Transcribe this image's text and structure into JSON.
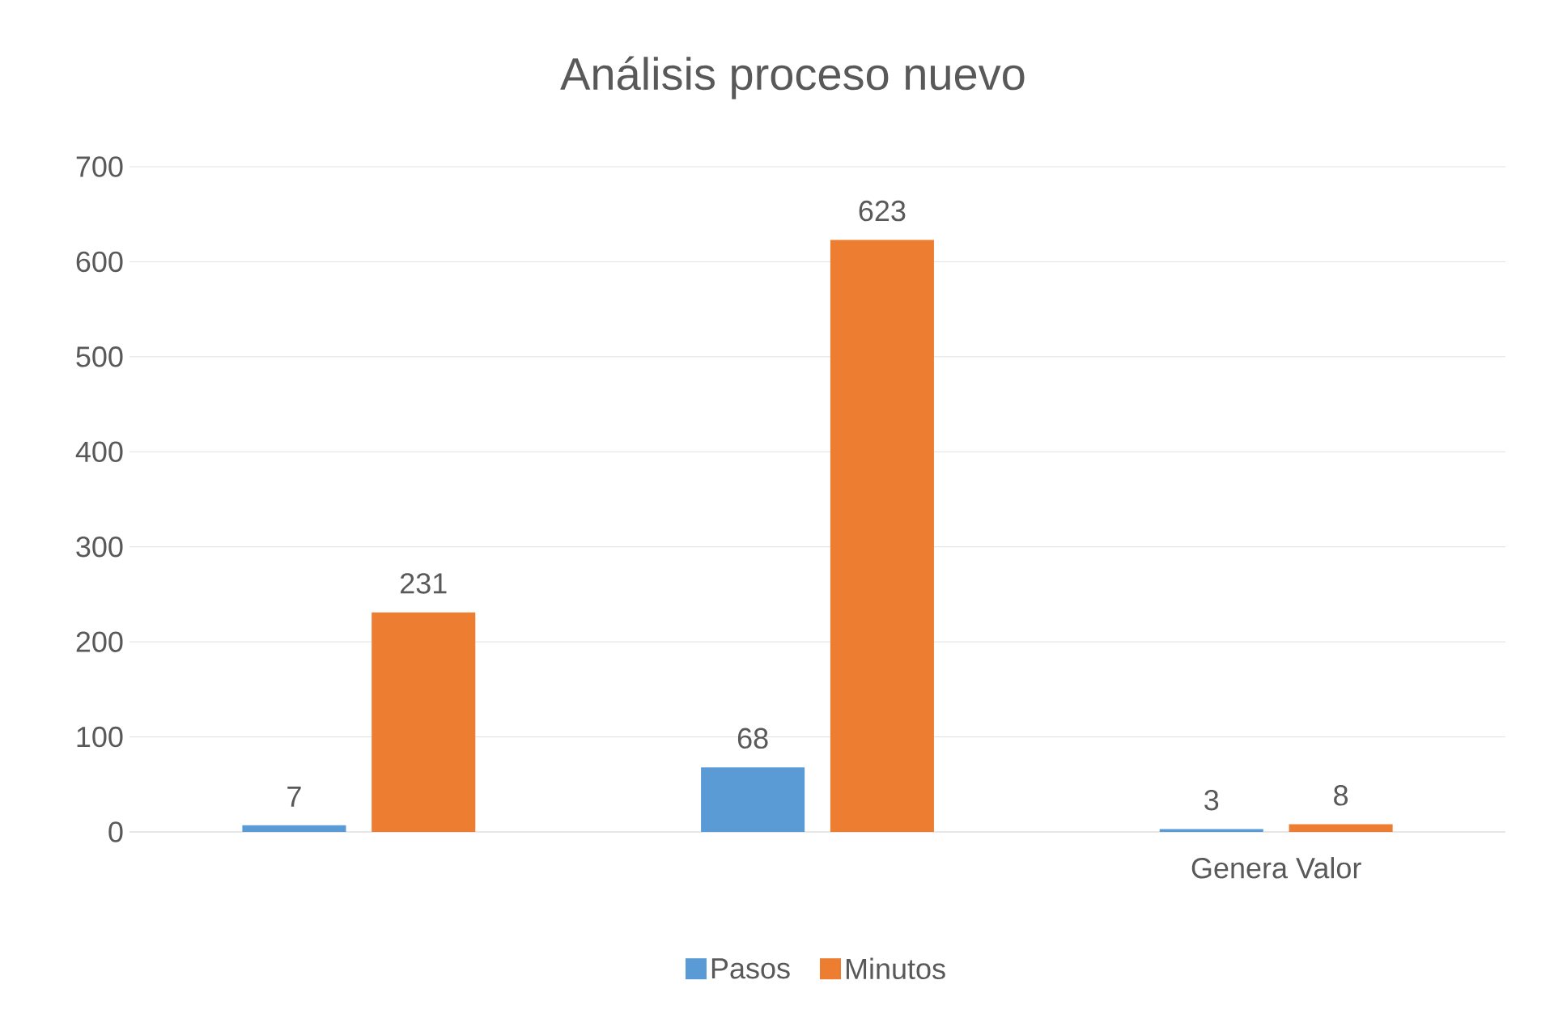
{
  "chart_data": {
    "type": "bar",
    "title": "Análisis proceso nuevo",
    "categories": [
      null,
      null,
      "Genera Valor"
    ],
    "series": [
      {
        "name": "Pasos",
        "color": "#5b9bd5",
        "values": [
          7,
          68,
          3
        ]
      },
      {
        "name": "Minutos",
        "color": "#ed7d31",
        "values": [
          231,
          623,
          8
        ]
      }
    ],
    "ylim": [
      0,
      700
    ],
    "yticks": [
      0,
      100,
      200,
      300,
      400,
      500,
      600,
      700
    ],
    "grid": "y",
    "legend": "bottom",
    "data_labels": true
  }
}
